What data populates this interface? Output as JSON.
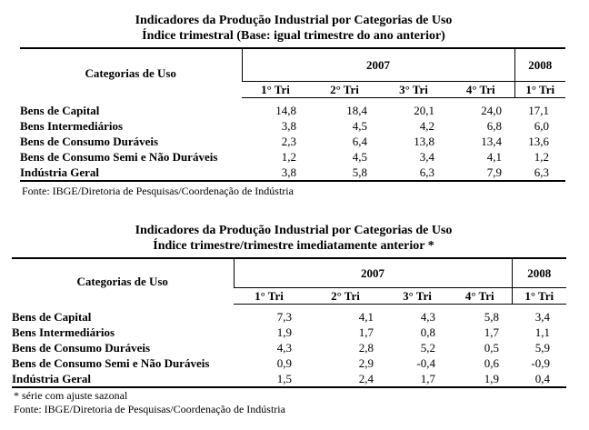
{
  "table1": {
    "title_line1": "Indicadores da Produção Industrial por Categorias de Uso",
    "title_line2": "Índice trimestral (Base: igual trimestre do ano anterior)",
    "col_category": "Categorias de Uso",
    "year1": "2007",
    "year2": "2008",
    "quarters": [
      "1° Tri",
      "2° Tri",
      "3° Tri",
      "4° Tri",
      "1° Tri"
    ],
    "rows": [
      {
        "label": "Bens de Capital",
        "values": [
          "14,8",
          "18,4",
          "20,1",
          "24,0",
          "17,1"
        ]
      },
      {
        "label": "Bens Intermediários",
        "values": [
          "3,8",
          "4,5",
          "4,2",
          "6,8",
          "6,0"
        ]
      },
      {
        "label": "Bens de Consumo Duráveis",
        "values": [
          "2,3",
          "6,4",
          "13,8",
          "13,4",
          "13,6"
        ]
      },
      {
        "label": "Bens de Consumo Semi e Não Duráveis",
        "values": [
          "1,2",
          "4,5",
          "3,4",
          "4,1",
          "1,2"
        ]
      },
      {
        "label": "Indústria Geral",
        "values": [
          "3,8",
          "5,8",
          "6,3",
          "7,9",
          "6,3"
        ]
      }
    ],
    "source": "Fonte: IBGE/Diretoria de Pesquisas/Coordenação de Indústria"
  },
  "table2": {
    "title_line1": "Indicadores da Produção Industrial por Categorias de Uso",
    "title_line2": "Índice trimestre/trimestre imediatamente anterior *",
    "col_category": "Categorias de Uso",
    "year1": "2007",
    "year2": "2008",
    "quarters": [
      "1° Tri",
      "2° Tri",
      "3° Tri",
      "4° Tri",
      "1° Tri"
    ],
    "rows": [
      {
        "label": "Bens de Capital",
        "values": [
          "7,3",
          "4,1",
          "4,3",
          "5,8",
          "3,4"
        ]
      },
      {
        "label": "Bens Intermediários",
        "values": [
          "1,9",
          "1,7",
          "0,8",
          "1,7",
          "1,1"
        ]
      },
      {
        "label": "Bens de Consumo Duráveis",
        "values": [
          "4,3",
          "2,8",
          "5,2",
          "0,5",
          "5,9"
        ]
      },
      {
        "label": "Bens de Consumo Semi e Não Duráveis",
        "values": [
          "0,9",
          "2,9",
          "-0,4",
          "0,6",
          "-0,9"
        ]
      },
      {
        "label": "Indústria Geral",
        "values": [
          "1,5",
          "2,4",
          "1,7",
          "1,9",
          "0,4"
        ]
      }
    ],
    "note": "* série com ajuste sazonal",
    "source": "Fonte: IBGE/Diretoria de Pesquisas/Coordenação de Indústria"
  }
}
